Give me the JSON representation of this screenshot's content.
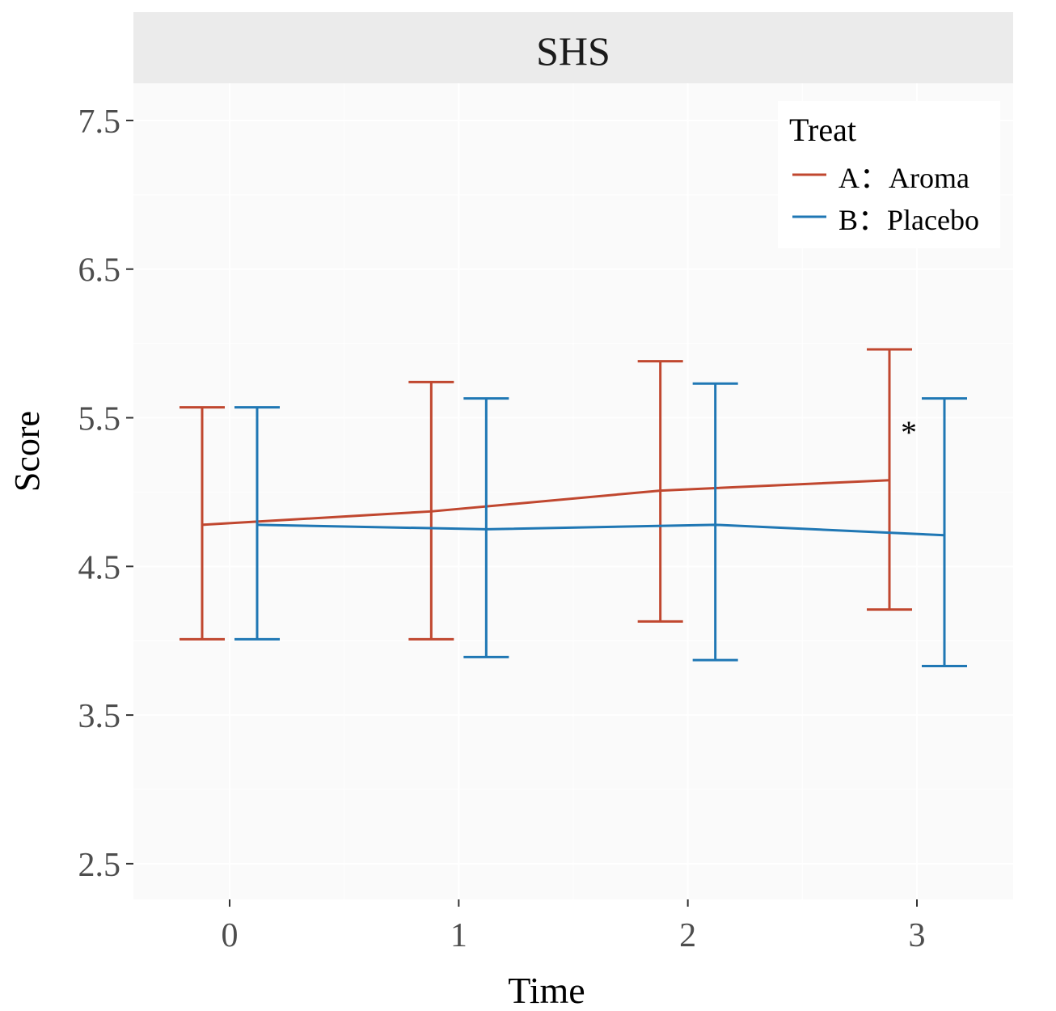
{
  "chart_data": {
    "type": "line",
    "title": "SHS",
    "xlabel": "Time",
    "ylabel": "Score",
    "x": [
      0,
      1,
      2,
      3
    ],
    "x_tick_labels": [
      "0",
      "1",
      "2",
      "3"
    ],
    "y_ticks": [
      2.5,
      3.5,
      4.5,
      5.5,
      6.5,
      7.5
    ],
    "y_tick_labels": [
      "2.5",
      "3.5",
      "4.5",
      "5.5",
      "6.5",
      "7.5"
    ],
    "xlim": [
      -0.42,
      3.42
    ],
    "ylim": [
      2.26,
      7.75
    ],
    "grid": true,
    "legend": {
      "title": "Treat",
      "position": "top-right"
    },
    "dodge": 0.12,
    "series": [
      {
        "name": "A：Aroma",
        "color": "#c0472f",
        "offset": -0.12,
        "means": [
          4.78,
          4.87,
          5.01,
          5.08
        ],
        "upper": [
          5.57,
          5.74,
          5.88,
          5.96
        ],
        "lower": [
          4.01,
          4.01,
          4.13,
          4.21
        ]
      },
      {
        "name": "B：Placebo",
        "color": "#1f77b4",
        "offset": 0.12,
        "means": [
          4.78,
          4.75,
          4.78,
          4.71
        ],
        "upper": [
          5.57,
          5.63,
          5.73,
          5.63
        ],
        "lower": [
          4.01,
          3.89,
          3.87,
          3.83
        ]
      }
    ],
    "annotations": [
      {
        "text": "*",
        "x": 3,
        "y": 5.14
      }
    ]
  },
  "colors": {
    "panel_background": "#fafafa",
    "strip_background": "#ebebeb",
    "grid_major": "#ffffff",
    "axis_text": "#4d4d4d"
  }
}
